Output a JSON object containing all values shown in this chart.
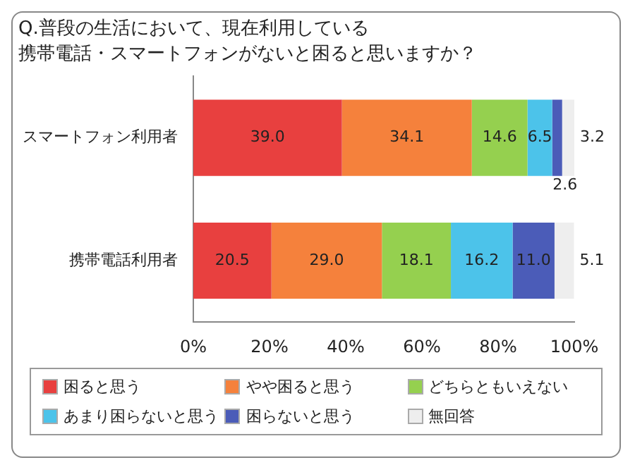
{
  "chart_data": {
    "type": "bar",
    "orientation": "horizontal",
    "stacked": true,
    "title": "Q.普段の生活において、現在利用している",
    "subtitle": "携帯電話・スマートフォンがないと困ると思いますか？",
    "categories": [
      "スマートフォン利用者",
      "携帯電話利用者"
    ],
    "series": [
      {
        "name": "困ると思う",
        "color": "#e8403f",
        "values": [
          39.0,
          20.5
        ],
        "value_labels": [
          "39.0",
          "20.5"
        ]
      },
      {
        "name": "やや困ると思う",
        "color": "#f5813c",
        "values": [
          34.1,
          29.0
        ],
        "value_labels": [
          "34.1",
          "29.0"
        ]
      },
      {
        "name": "どちらともいえない",
        "color": "#95d04f",
        "values": [
          14.6,
          18.1
        ],
        "value_labels": [
          "14.6",
          "18.1"
        ]
      },
      {
        "name": "あまり困らないと思う",
        "color": "#4cc3ea",
        "values": [
          6.5,
          16.2
        ],
        "value_labels": [
          "6.5",
          "16.2"
        ]
      },
      {
        "name": "困らないと思う",
        "color": "#4b5cb8",
        "values": [
          2.6,
          11.0
        ],
        "value_labels": [
          "2.6",
          "11.0"
        ]
      },
      {
        "name": "無回答",
        "color": "#eeeeee",
        "values": [
          3.2,
          5.1
        ],
        "value_labels": [
          "3.2",
          "5.1"
        ]
      }
    ],
    "xlim": [
      0,
      100
    ],
    "xticks": [
      {
        "value": 0,
        "label": "0%"
      },
      {
        "value": 20,
        "label": "20%"
      },
      {
        "value": 40,
        "label": "40%"
      },
      {
        "value": 60,
        "label": "60%"
      },
      {
        "value": 80,
        "label": "80%"
      },
      {
        "value": 100,
        "label": "100%"
      }
    ],
    "grid": false,
    "legend": "bottom"
  }
}
